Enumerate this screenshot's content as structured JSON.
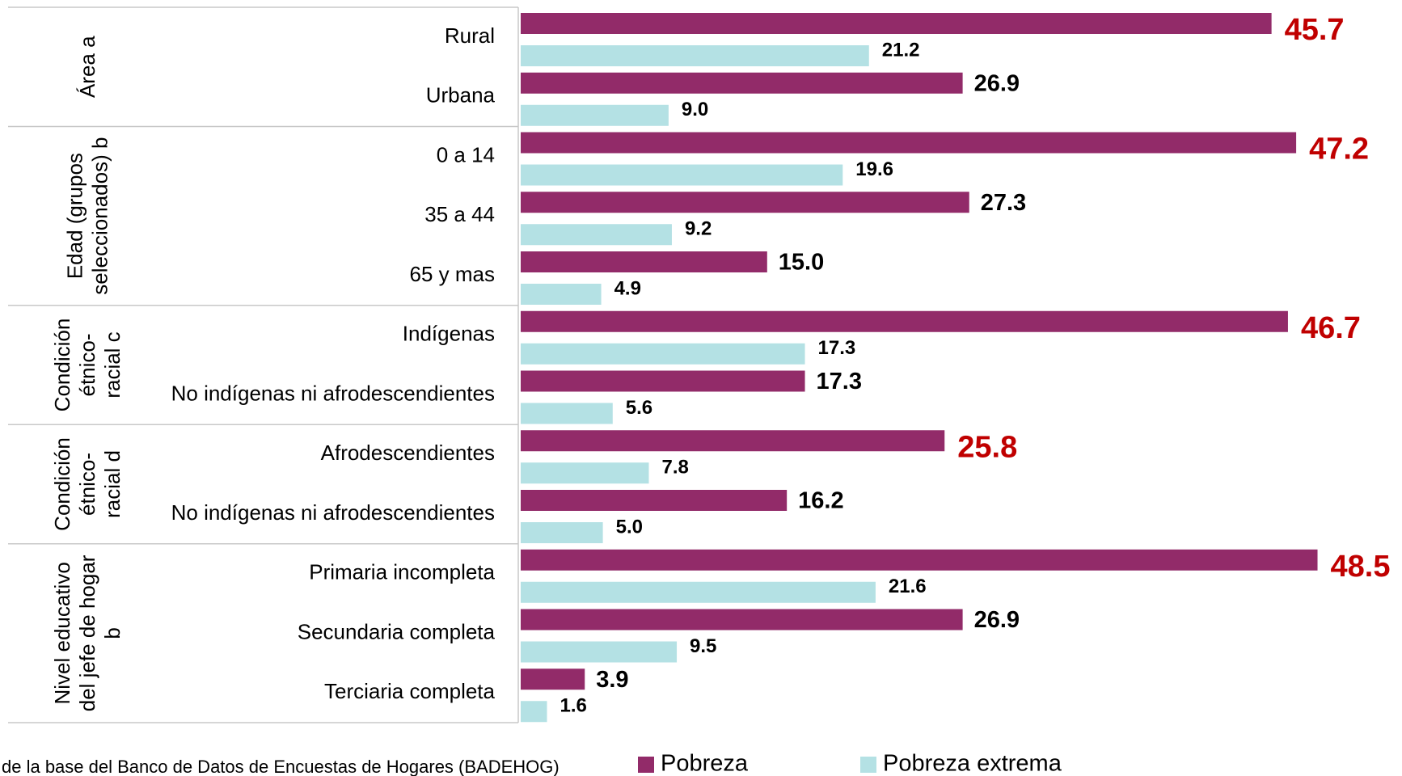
{
  "chart_data": {
    "type": "grouped-hbar",
    "groups": [
      {
        "label": [
          "Área a"
        ],
        "categories": [
          "Rural",
          "Urbana"
        ]
      },
      {
        "label": [
          "Edad (grupos",
          "seleccionados) b"
        ],
        "categories": [
          "0 a 14",
          "35 a 44",
          "65 y mas"
        ]
      },
      {
        "label": [
          "Condición",
          "étnico-",
          "racial c"
        ],
        "categories": [
          "Indígenas",
          "No indígenas ni afrodescendientes"
        ]
      },
      {
        "label": [
          "Condición",
          "étnico-",
          "racial d"
        ],
        "categories": [
          "Afrodescendientes",
          "No indígenas ni afrodescendientes"
        ]
      },
      {
        "label": [
          "Nivel educativo",
          "del jefe de hogar",
          "b"
        ],
        "categories": [
          "Primaria incompleta",
          "Secundaria completa",
          "Terciaria completa"
        ]
      }
    ],
    "series": [
      {
        "name": "Pobreza",
        "color": "#922b69",
        "values": [
          45.7,
          26.9,
          47.2,
          27.3,
          15.0,
          46.7,
          17.3,
          25.8,
          16.2,
          48.5,
          26.9,
          3.9
        ],
        "value_labels": [
          "45.7",
          "26.9",
          "47.2",
          "27.3",
          "15.0",
          "46.7",
          "17.3",
          "25.8",
          "16.2",
          "48.5",
          "26.9",
          "3.9"
        ],
        "label_colors": [
          "#c00000",
          "#000000",
          "#c00000",
          "#000000",
          "#000000",
          "#c00000",
          "#000000",
          "#c00000",
          "#000000",
          "#c00000",
          "#000000",
          "#000000"
        ]
      },
      {
        "name": "Pobreza extrema",
        "color": "#b4e1e4",
        "values": [
          21.2,
          9.0,
          19.6,
          9.2,
          4.9,
          17.3,
          5.6,
          7.8,
          5.0,
          21.6,
          9.5,
          1.6
        ],
        "value_labels": [
          "21.2",
          "9.0",
          "19.6",
          "9.2",
          "4.9",
          "17.3",
          "5.6",
          "7.8",
          "5.0",
          "21.6",
          "9.5",
          "1.6"
        ]
      }
    ],
    "xlim": [
      0,
      50
    ],
    "source": "de la base del Banco de Datos de Encuestas de Hogares (BADEHOG)"
  }
}
